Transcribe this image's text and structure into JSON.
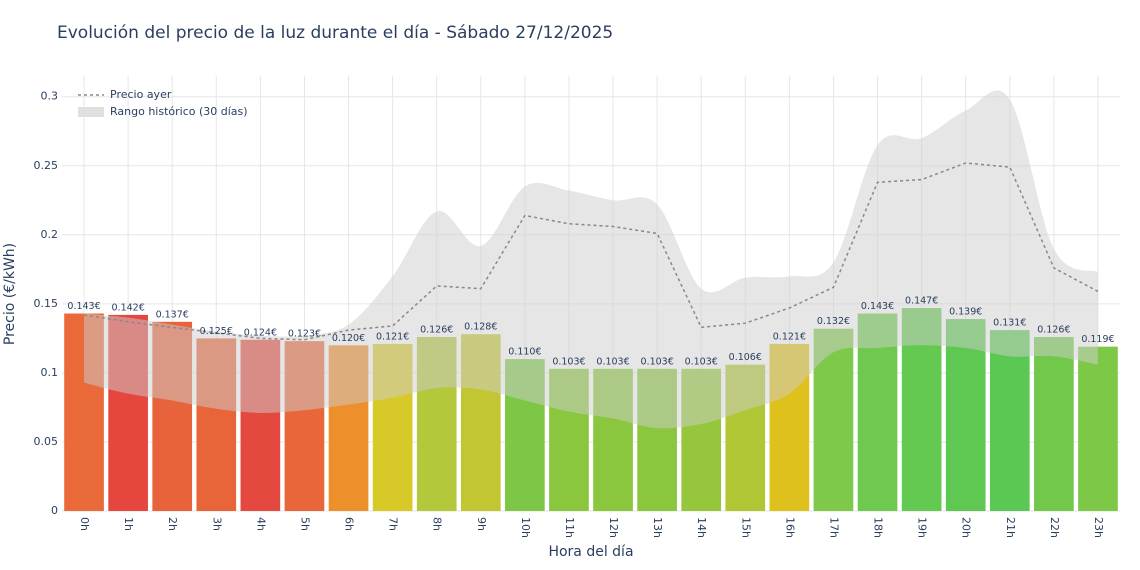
{
  "chart_data": {
    "type": "bar",
    "title": "Evolución del precio de la luz durante el día - Sábado 27/12/2025",
    "x_label": "Hora del día",
    "y_label": "Precio (€/kWh)",
    "categories": [
      "0h",
      "1h",
      "2h",
      "3h",
      "4h",
      "5h",
      "6h",
      "7h",
      "8h",
      "9h",
      "10h",
      "11h",
      "12h",
      "13h",
      "14h",
      "15h",
      "16h",
      "17h",
      "18h",
      "19h",
      "20h",
      "21h",
      "22h",
      "23h"
    ],
    "values": [
      0.143,
      0.142,
      0.137,
      0.125,
      0.124,
      0.123,
      0.12,
      0.121,
      0.126,
      0.128,
      0.11,
      0.103,
      0.103,
      0.103,
      0.103,
      0.106,
      0.121,
      0.132,
      0.143,
      0.147,
      0.139,
      0.131,
      0.126,
      0.119
    ],
    "value_labels": [
      "0.143€",
      "0.142€",
      "0.137€",
      "0.125€",
      "0.124€",
      "0.123€",
      "0.120€",
      "0.121€",
      "0.126€",
      "0.128€",
      "0.110€",
      "0.103€",
      "0.103€",
      "0.103€",
      "0.103€",
      "0.106€",
      "0.121€",
      "0.132€",
      "0.143€",
      "0.147€",
      "0.139€",
      "0.131€",
      "0.126€",
      "0.119€"
    ],
    "colors": [
      "#ea6a3a",
      "#e5473f",
      "#e8623b",
      "#e8653a",
      "#e5483f",
      "#e8663a",
      "#ed8f2a",
      "#d6c928",
      "#b5c73a",
      "#c2c632",
      "#7dc646",
      "#8bc63f",
      "#8bc63f",
      "#8bc63f",
      "#95c63b",
      "#b0c634",
      "#dfc11d",
      "#7ec84a",
      "#6ec94e",
      "#64c951",
      "#5ec853",
      "#5cc854",
      "#72c84a",
      "#7ec848"
    ],
    "line": {
      "name": "Precio ayer",
      "color": "#888888",
      "values": [
        0.142,
        0.137,
        0.133,
        0.129,
        0.125,
        0.124,
        0.131,
        0.134,
        0.163,
        0.161,
        0.214,
        0.208,
        0.206,
        0.201,
        0.133,
        0.136,
        0.147,
        0.162,
        0.238,
        0.24,
        0.252,
        0.249,
        0.176,
        0.159
      ]
    },
    "band": {
      "name": "Rango histórico (30 días)",
      "color": "rgba(205,205,205,0.5)",
      "upper": [
        0.143,
        0.14,
        0.135,
        0.13,
        0.127,
        0.127,
        0.135,
        0.17,
        0.217,
        0.192,
        0.235,
        0.232,
        0.225,
        0.222,
        0.161,
        0.169,
        0.17,
        0.18,
        0.265,
        0.27,
        0.29,
        0.298,
        0.19,
        0.173
      ],
      "lower": [
        0.093,
        0.085,
        0.08,
        0.074,
        0.071,
        0.073,
        0.077,
        0.082,
        0.089,
        0.088,
        0.08,
        0.072,
        0.067,
        0.06,
        0.063,
        0.073,
        0.085,
        0.115,
        0.118,
        0.12,
        0.118,
        0.112,
        0.112,
        0.106
      ]
    },
    "ylim": [
      0,
      0.315
    ],
    "yticks": [
      0,
      0.05,
      0.1,
      0.15,
      0.2,
      0.25,
      0.3
    ],
    "grid": true,
    "legend": "top-left"
  }
}
